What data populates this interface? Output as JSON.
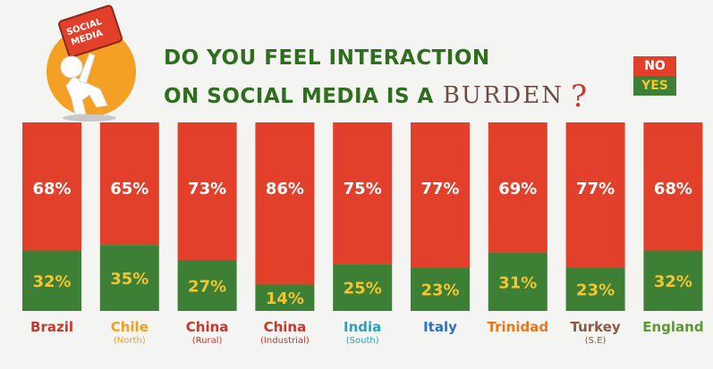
{
  "header": {
    "title_line1": "DO YOU FEEL INTERACTION",
    "title_line2": "ON SOCIAL MEDIA IS A",
    "title_burden": "BURDEN",
    "title_qmark": "?",
    "sign_text_1": "SOCIAL",
    "sign_text_2": "MEDIA"
  },
  "legend": {
    "no_label": "NO",
    "yes_label": "YES"
  },
  "colors": {
    "no": "#e2402a",
    "yes": "#3d7f34",
    "no_text": "#ffffff",
    "yes_text": "#f2c630"
  },
  "chart_data": {
    "type": "bar",
    "stacked": true,
    "categories": [
      "Brazil",
      "Chile",
      "China",
      "China",
      "India",
      "Italy",
      "Trinidad",
      "Turkey",
      "England"
    ],
    "subtitles": [
      "",
      "(North)",
      "(Rural)",
      "(Industrial)",
      "(South)",
      "",
      "",
      "(S.E)",
      ""
    ],
    "category_colors": [
      "#c8372b",
      "#f0a020",
      "#c8372b",
      "#c8372b",
      "#2aa3b8",
      "#2f72c0",
      "#e8761c",
      "#8a5a40",
      "#5a9a30"
    ],
    "series": [
      {
        "name": "NO",
        "values": [
          68,
          65,
          73,
          86,
          75,
          77,
          69,
          77,
          68
        ]
      },
      {
        "name": "YES",
        "values": [
          32,
          35,
          27,
          14,
          25,
          23,
          31,
          23,
          32
        ]
      }
    ],
    "value_labels": {
      "NO": [
        "68%",
        "65%",
        "73%",
        "86%",
        "75%",
        "77%",
        "69%",
        "77%",
        "68%"
      ],
      "YES": [
        "32%",
        "35%",
        "27%",
        "14%",
        "25%",
        "23%",
        "31%",
        "23%",
        "32%"
      ]
    },
    "ylim": [
      0,
      100
    ]
  }
}
